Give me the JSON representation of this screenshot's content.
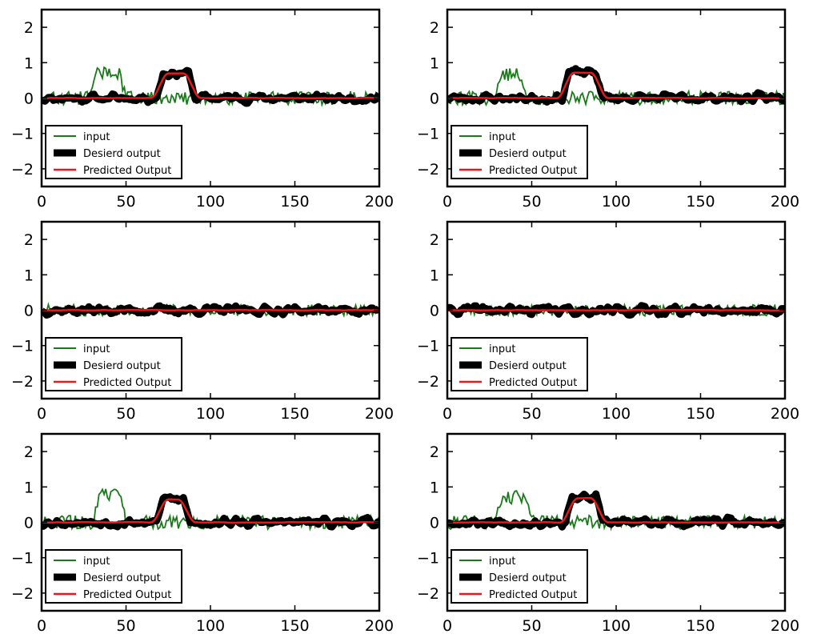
{
  "figure": {
    "rows": 3,
    "cols": 2
  },
  "colors": {
    "input": "#1a7a1a",
    "desired": "#000000",
    "predicted": "#e41a1c"
  },
  "chart_data": [
    {
      "type": "line",
      "xlim": [
        0,
        200
      ],
      "ylim": [
        -2.5,
        2.5
      ],
      "xticks": [
        0,
        50,
        100,
        150,
        200
      ],
      "yticks": [
        2,
        1,
        0,
        -1,
        -2
      ],
      "legend": [
        "input",
        "Desierd output",
        "Predicted Output"
      ],
      "legend_position": "lower-left",
      "seed": 11,
      "input_bump": {
        "start": 28,
        "end": 50,
        "height": 0.7
      },
      "output_bump": {
        "start": 68,
        "end": 91,
        "height": 0.7
      },
      "noise": 0.1,
      "input_noise": 0.12
    },
    {
      "type": "line",
      "xlim": [
        0,
        200
      ],
      "ylim": [
        -2.5,
        2.5
      ],
      "xticks": [
        0,
        50,
        100,
        150,
        200
      ],
      "yticks": [
        2,
        1,
        0,
        -1,
        -2
      ],
      "legend": [
        "input",
        "Desierd output",
        "Predicted Output"
      ],
      "legend_position": "lower-left",
      "seed": 23,
      "input_bump": {
        "start": 28,
        "end": 48,
        "height": 0.65
      },
      "output_bump": {
        "start": 68,
        "end": 92,
        "height": 0.72
      },
      "noise": 0.1,
      "input_noise": 0.12
    },
    {
      "type": "line",
      "xlim": [
        0,
        200
      ],
      "ylim": [
        -2.5,
        2.5
      ],
      "xticks": [
        0,
        50,
        100,
        150,
        200
      ],
      "yticks": [
        2,
        1,
        0,
        -1,
        -2
      ],
      "legend": [
        "input",
        "Desierd output",
        "Predicted Output"
      ],
      "legend_position": "lower-left",
      "seed": 37,
      "input_bump": null,
      "output_bump": null,
      "noise": 0.1,
      "input_noise": 0.1
    },
    {
      "type": "line",
      "xlim": [
        0,
        200
      ],
      "ylim": [
        -2.5,
        2.5
      ],
      "xticks": [
        0,
        50,
        100,
        150,
        200
      ],
      "yticks": [
        2,
        1,
        0,
        -1,
        -2
      ],
      "legend": [
        "input",
        "Desierd output",
        "Predicted Output"
      ],
      "legend_position": "lower-left",
      "seed": 41,
      "input_bump": null,
      "output_bump": null,
      "noise": 0.11,
      "input_noise": 0.1
    },
    {
      "type": "line",
      "xlim": [
        0,
        200
      ],
      "ylim": [
        -2.5,
        2.5
      ],
      "xticks": [
        0,
        50,
        100,
        150,
        200
      ],
      "yticks": [
        2,
        1,
        0,
        -1,
        -2
      ],
      "legend": [
        "input",
        "Desierd output",
        "Predicted Output"
      ],
      "legend_position": "lower-left",
      "seed": 53,
      "input_bump": {
        "start": 30,
        "end": 50,
        "height": 0.75
      },
      "output_bump": {
        "start": 68,
        "end": 88,
        "height": 0.65
      },
      "noise": 0.1,
      "input_noise": 0.12
    },
    {
      "type": "line",
      "xlim": [
        0,
        200
      ],
      "ylim": [
        -2.5,
        2.5
      ],
      "xticks": [
        0,
        50,
        100,
        150,
        200
      ],
      "yticks": [
        2,
        1,
        0,
        -1,
        -2
      ],
      "legend": [
        "input",
        "Desierd output",
        "Predicted Output"
      ],
      "legend_position": "lower-left",
      "seed": 67,
      "input_bump": {
        "start": 28,
        "end": 50,
        "height": 0.7
      },
      "output_bump": {
        "start": 70,
        "end": 92,
        "height": 0.68
      },
      "noise": 0.1,
      "input_noise": 0.12
    }
  ]
}
